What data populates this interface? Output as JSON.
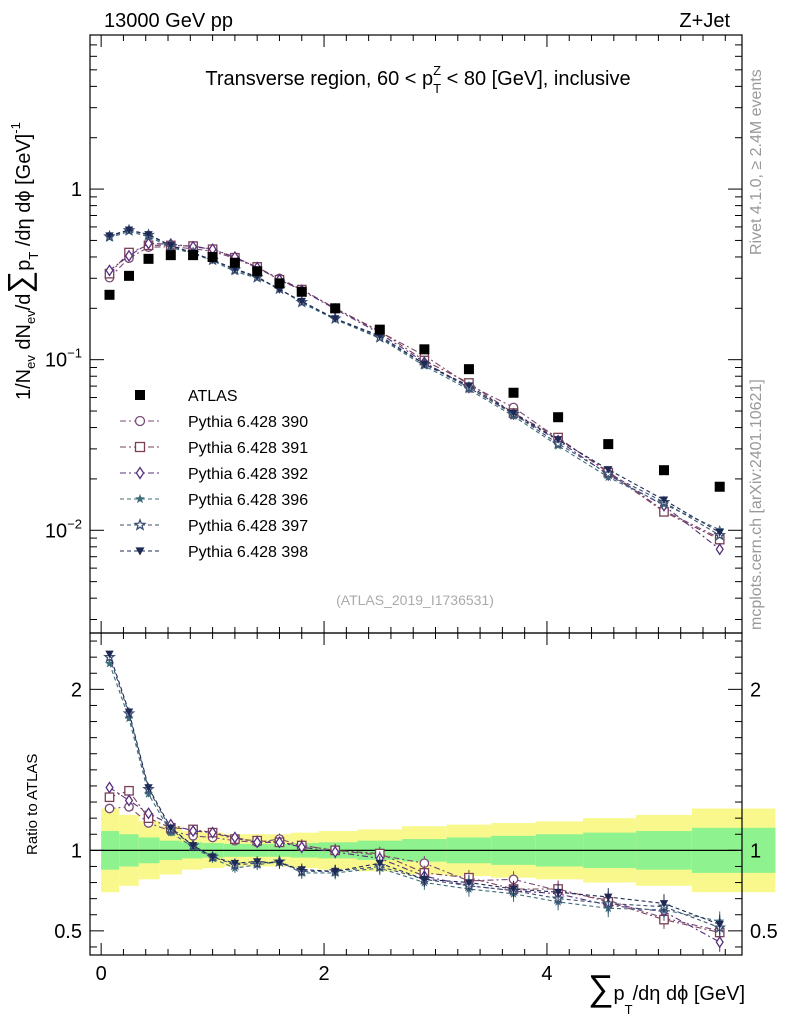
{
  "header": {
    "left": "13000 GeV pp",
    "right": "Z+Jet"
  },
  "side_texts": {
    "rivet": "Rivet 4.1.0, ≥ 2.4M events",
    "mcplots": "mcplots.cern.ch [arXiv:2401.10621]"
  },
  "chart_data": {
    "type": "scatter",
    "title": "Transverse region, 60 < p_T^Z < 80 [GeV], inclusive",
    "title_parts": {
      "pre": "Transverse region, 60 < p",
      "sup": "Z",
      "sub": "T",
      "post": " < 80 [GeV], inclusive"
    },
    "watermark": "(ATLAS_2019_I1736531)",
    "ylabel_parts": {
      "a": "1/N",
      "a_sub": "ev",
      "b": " dN",
      "b_sub": "ev",
      "c": "/d",
      "sum": "∑",
      "d": "p",
      "d_sub": "T",
      "e": " /dη dϕ  [GeV]",
      "e_sup": "-1"
    },
    "xlabel_parts": {
      "sum": "∑",
      "p": "p",
      "p_sub": "T",
      "rest": "/dη dϕ [GeV]"
    },
    "ratio_ylabel": "Ratio to ATLAS",
    "x": [
      0.075,
      0.25,
      0.425,
      0.625,
      0.825,
      1.0,
      1.2,
      1.4,
      1.6,
      1.8,
      2.1,
      2.5,
      2.9,
      3.3,
      3.7,
      4.1,
      4.55,
      5.05,
      5.55
    ],
    "xlim": [
      -0.1,
      5.75
    ],
    "xticks": [
      0,
      2,
      4
    ],
    "xtick_labels": [
      "0",
      "2",
      "4"
    ],
    "ylim": [
      0.0025,
      8.0
    ],
    "yscale": "log",
    "yticks": [
      1,
      0.1,
      0.01
    ],
    "ytick_labels": [
      {
        "base": "1",
        "exp": ""
      },
      {
        "base": "10",
        "exp": "−1"
      },
      {
        "base": "10",
        "exp": "−2"
      }
    ],
    "ratio_ylim": [
      0.35,
      2.35
    ],
    "ratio_yticks": [
      0.5,
      1,
      2
    ],
    "ratio_ytick_labels": [
      "0.5",
      "1",
      "2"
    ],
    "data": {
      "name": "ATLAS",
      "values": [
        0.24,
        0.31,
        0.39,
        0.41,
        0.41,
        0.4,
        0.37,
        0.33,
        0.28,
        0.25,
        0.2,
        0.15,
        0.115,
        0.088,
        0.064,
        0.046,
        0.032,
        0.0225,
        0.018
      ],
      "band_inner": [
        0.12,
        0.1,
        0.08,
        0.06,
        0.05,
        0.045,
        0.04,
        0.04,
        0.04,
        0.045,
        0.05,
        0.06,
        0.07,
        0.08,
        0.09,
        0.1,
        0.11,
        0.12,
        0.14
      ],
      "band_outer": [
        0.26,
        0.22,
        0.18,
        0.15,
        0.12,
        0.11,
        0.1,
        0.1,
        0.1,
        0.11,
        0.12,
        0.13,
        0.15,
        0.16,
        0.17,
        0.18,
        0.2,
        0.22,
        0.26
      ]
    },
    "band_colors": {
      "inner": "#8ef28e",
      "outer": "#f8f88c"
    },
    "series": [
      {
        "name": "Pythia 6.428 390",
        "color": "#7a4a78",
        "marker": "circle-open",
        "dash": "6 3 2 3",
        "ratio": [
          1.26,
          1.27,
          1.17,
          1.12,
          1.09,
          1.08,
          1.06,
          1.05,
          1.07,
          1.03,
          1.0,
          0.97,
          0.92,
          0.81,
          0.82,
          0.75,
          0.69,
          0.58,
          0.5
        ]
      },
      {
        "name": "Pythia 6.428 391",
        "color": "#7a4055",
        "marker": "square-open",
        "dash": "6 3 2 3",
        "ratio": [
          1.33,
          1.37,
          1.2,
          1.14,
          1.13,
          1.11,
          1.07,
          1.06,
          1.05,
          1.03,
          1.0,
          0.98,
          0.86,
          0.83,
          0.76,
          0.76,
          0.68,
          0.57,
          0.49
        ]
      },
      {
        "name": "Pythia 6.428 392",
        "color": "#55307d",
        "marker": "diamond-open",
        "dash": "6 3 2 3",
        "ratio": [
          1.39,
          1.31,
          1.23,
          1.16,
          1.12,
          1.11,
          1.08,
          1.05,
          1.05,
          1.02,
          0.99,
          0.95,
          0.84,
          0.78,
          0.75,
          0.73,
          0.66,
          0.62,
          0.43
        ]
      },
      {
        "name": "Pythia 6.428 396",
        "color": "#3d6c7a",
        "marker": "star-filled",
        "dash": "4 3",
        "ratio": [
          2.16,
          1.82,
          1.35,
          1.11,
          1.02,
          0.95,
          0.89,
          0.91,
          0.93,
          0.86,
          0.86,
          0.89,
          0.8,
          0.76,
          0.73,
          0.68,
          0.64,
          0.63,
          0.56
        ]
      },
      {
        "name": "Pythia 6.428 397",
        "color": "#3a4f72",
        "marker": "star-open",
        "dash": "4 3",
        "ratio": [
          2.2,
          1.85,
          1.38,
          1.13,
          1.03,
          0.96,
          0.91,
          0.92,
          0.93,
          0.87,
          0.87,
          0.9,
          0.82,
          0.78,
          0.75,
          0.7,
          0.67,
          0.65,
          0.52
        ]
      },
      {
        "name": "Pythia 6.428 398",
        "color": "#1e2a55",
        "marker": "triangle-down-filled",
        "dash": "4 3",
        "ratio": [
          2.22,
          1.86,
          1.39,
          1.14,
          1.03,
          0.96,
          0.92,
          0.93,
          0.92,
          0.88,
          0.87,
          0.92,
          0.82,
          0.8,
          0.76,
          0.74,
          0.71,
          0.67,
          0.54
        ]
      }
    ]
  }
}
